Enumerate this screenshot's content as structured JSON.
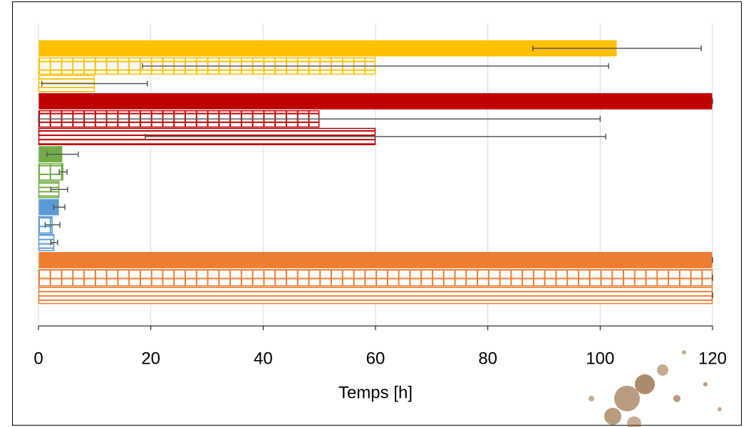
{
  "chart_data": {
    "type": "bar",
    "orientation": "horizontal",
    "x_label": "Temps [h]",
    "categories": [
      null,
      null,
      null,
      null,
      null,
      null,
      null,
      null,
      null,
      null,
      null,
      null,
      null,
      null,
      null
    ],
    "values": [
      103,
      60,
      10,
      120,
      50,
      60,
      4.3,
      4.4,
      3.7,
      3.7,
      2.5,
      2.8,
      120,
      120,
      120
    ],
    "errors": [
      15,
      41.5,
      9.4,
      0,
      50,
      41,
      2.8,
      0.7,
      1.5,
      1,
      1.3,
      0.6,
      0,
      0,
      0
    ],
    "colors": [
      "#ffc000",
      "#ffc000",
      "#ffc000",
      "#c00000",
      "#c00000",
      "#c00000",
      "#70ad47",
      "#70ad47",
      "#70ad47",
      "#5b9bd5",
      "#5b9bd5",
      "#5b9bd5",
      "#ed7d31",
      "#ed7d31",
      "#ed7d31"
    ],
    "patterns": [
      "solid",
      "grid",
      "stripes",
      "solid",
      "grid",
      "stripes",
      "solid",
      "grid",
      "stripes",
      "solid",
      "grid",
      "stripes",
      "solid",
      "grid",
      "stripes"
    ],
    "xlim": [
      0,
      120
    ],
    "xticks": [
      0,
      20,
      40,
      60,
      80,
      100,
      120
    ],
    "grid": true
  }
}
